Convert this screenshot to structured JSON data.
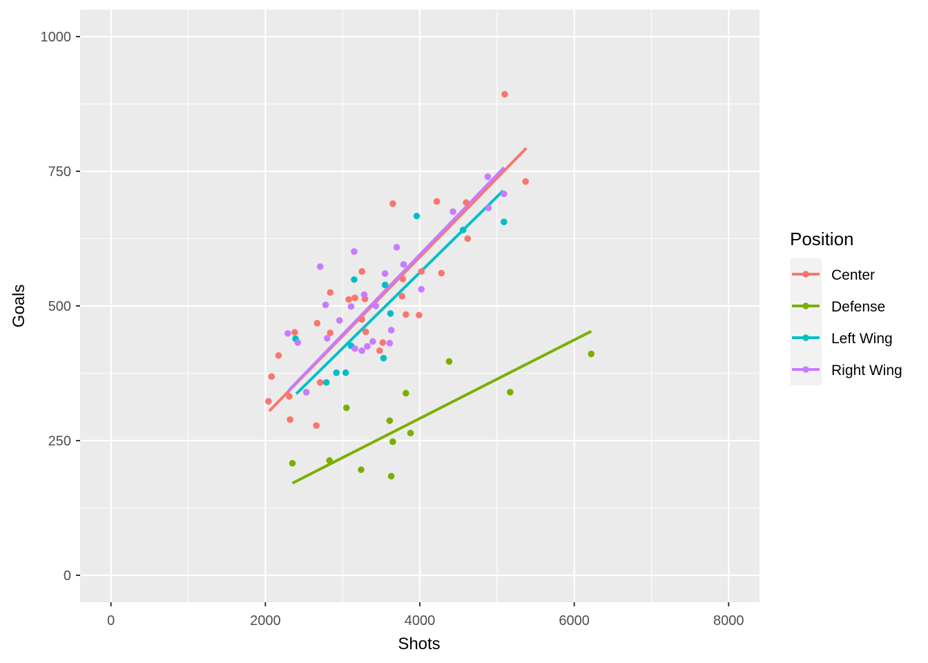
{
  "chart_data": {
    "type": "scatter",
    "xlabel": "Shots",
    "ylabel": "Goals",
    "xlim": [
      -400,
      8400
    ],
    "ylim": [
      -50,
      1050
    ],
    "x_ticks": [
      0,
      2000,
      4000,
      6000,
      8000
    ],
    "y_ticks": [
      0,
      250,
      500,
      750,
      1000
    ],
    "grid": true,
    "legend": {
      "title": "Position",
      "position": "right"
    },
    "series": [
      {
        "name": "Center",
        "color": "#F8766D",
        "points": [
          [
            2040,
            323
          ],
          [
            2080,
            369
          ],
          [
            2170,
            408
          ],
          [
            2310,
            332
          ],
          [
            2320,
            289
          ],
          [
            2380,
            451
          ],
          [
            2660,
            278
          ],
          [
            2670,
            468
          ],
          [
            2710,
            358
          ],
          [
            2840,
            525
          ],
          [
            2840,
            450
          ],
          [
            3080,
            512
          ],
          [
            3160,
            515
          ],
          [
            3250,
            564
          ],
          [
            3250,
            475
          ],
          [
            3290,
            513
          ],
          [
            3300,
            452
          ],
          [
            3480,
            417
          ],
          [
            3520,
            432
          ],
          [
            3650,
            690
          ],
          [
            3770,
            518
          ],
          [
            3780,
            550
          ],
          [
            3820,
            484
          ],
          [
            3990,
            483
          ],
          [
            4020,
            564
          ],
          [
            4220,
            694
          ],
          [
            4280,
            561
          ],
          [
            4600,
            692
          ],
          [
            4620,
            625
          ],
          [
            5100,
            893
          ],
          [
            5370,
            731
          ]
        ],
        "fit": {
          "x": [
            2050,
            5380
          ],
          "y": [
            305,
            793
          ]
        }
      },
      {
        "name": "Defense",
        "color": "#7CAE00",
        "points": [
          [
            2350,
            208
          ],
          [
            2830,
            213
          ],
          [
            3050,
            311
          ],
          [
            3240,
            196
          ],
          [
            3610,
            287
          ],
          [
            3630,
            184
          ],
          [
            3650,
            248
          ],
          [
            3820,
            338
          ],
          [
            3880,
            264
          ],
          [
            4380,
            397
          ],
          [
            5170,
            340
          ],
          [
            6220,
            411
          ]
        ],
        "fit": {
          "x": [
            2350,
            6220
          ],
          "y": [
            171,
            453
          ]
        }
      },
      {
        "name": "Left Wing",
        "color": "#00BFC4",
        "points": [
          [
            2390,
            439
          ],
          [
            2790,
            358
          ],
          [
            2920,
            376
          ],
          [
            3040,
            376
          ],
          [
            3110,
            426
          ],
          [
            3150,
            549
          ],
          [
            3530,
            403
          ],
          [
            3550,
            539
          ],
          [
            3620,
            486
          ],
          [
            3960,
            667
          ],
          [
            4560,
            641
          ],
          [
            5090,
            656
          ]
        ],
        "fit": {
          "x": [
            2400,
            5080
          ],
          "y": [
            337,
            714
          ]
        }
      },
      {
        "name": "Right Wing",
        "color": "#C77CFF",
        "points": [
          [
            2290,
            449
          ],
          [
            2420,
            432
          ],
          [
            2530,
            340
          ],
          [
            2710,
            573
          ],
          [
            2780,
            502
          ],
          [
            2800,
            440
          ],
          [
            2960,
            473
          ],
          [
            3110,
            499
          ],
          [
            3150,
            601
          ],
          [
            3160,
            421
          ],
          [
            3250,
            417
          ],
          [
            3280,
            521
          ],
          [
            3320,
            425
          ],
          [
            3390,
            434
          ],
          [
            3430,
            500
          ],
          [
            3550,
            560
          ],
          [
            3610,
            431
          ],
          [
            3630,
            455
          ],
          [
            3700,
            609
          ],
          [
            3790,
            577
          ],
          [
            4020,
            531
          ],
          [
            4430,
            675
          ],
          [
            4880,
            740
          ],
          [
            4890,
            682
          ],
          [
            5090,
            708
          ]
        ],
        "fit": {
          "x": [
            2300,
            5090
          ],
          "y": [
            343,
            757
          ]
        }
      }
    ]
  }
}
